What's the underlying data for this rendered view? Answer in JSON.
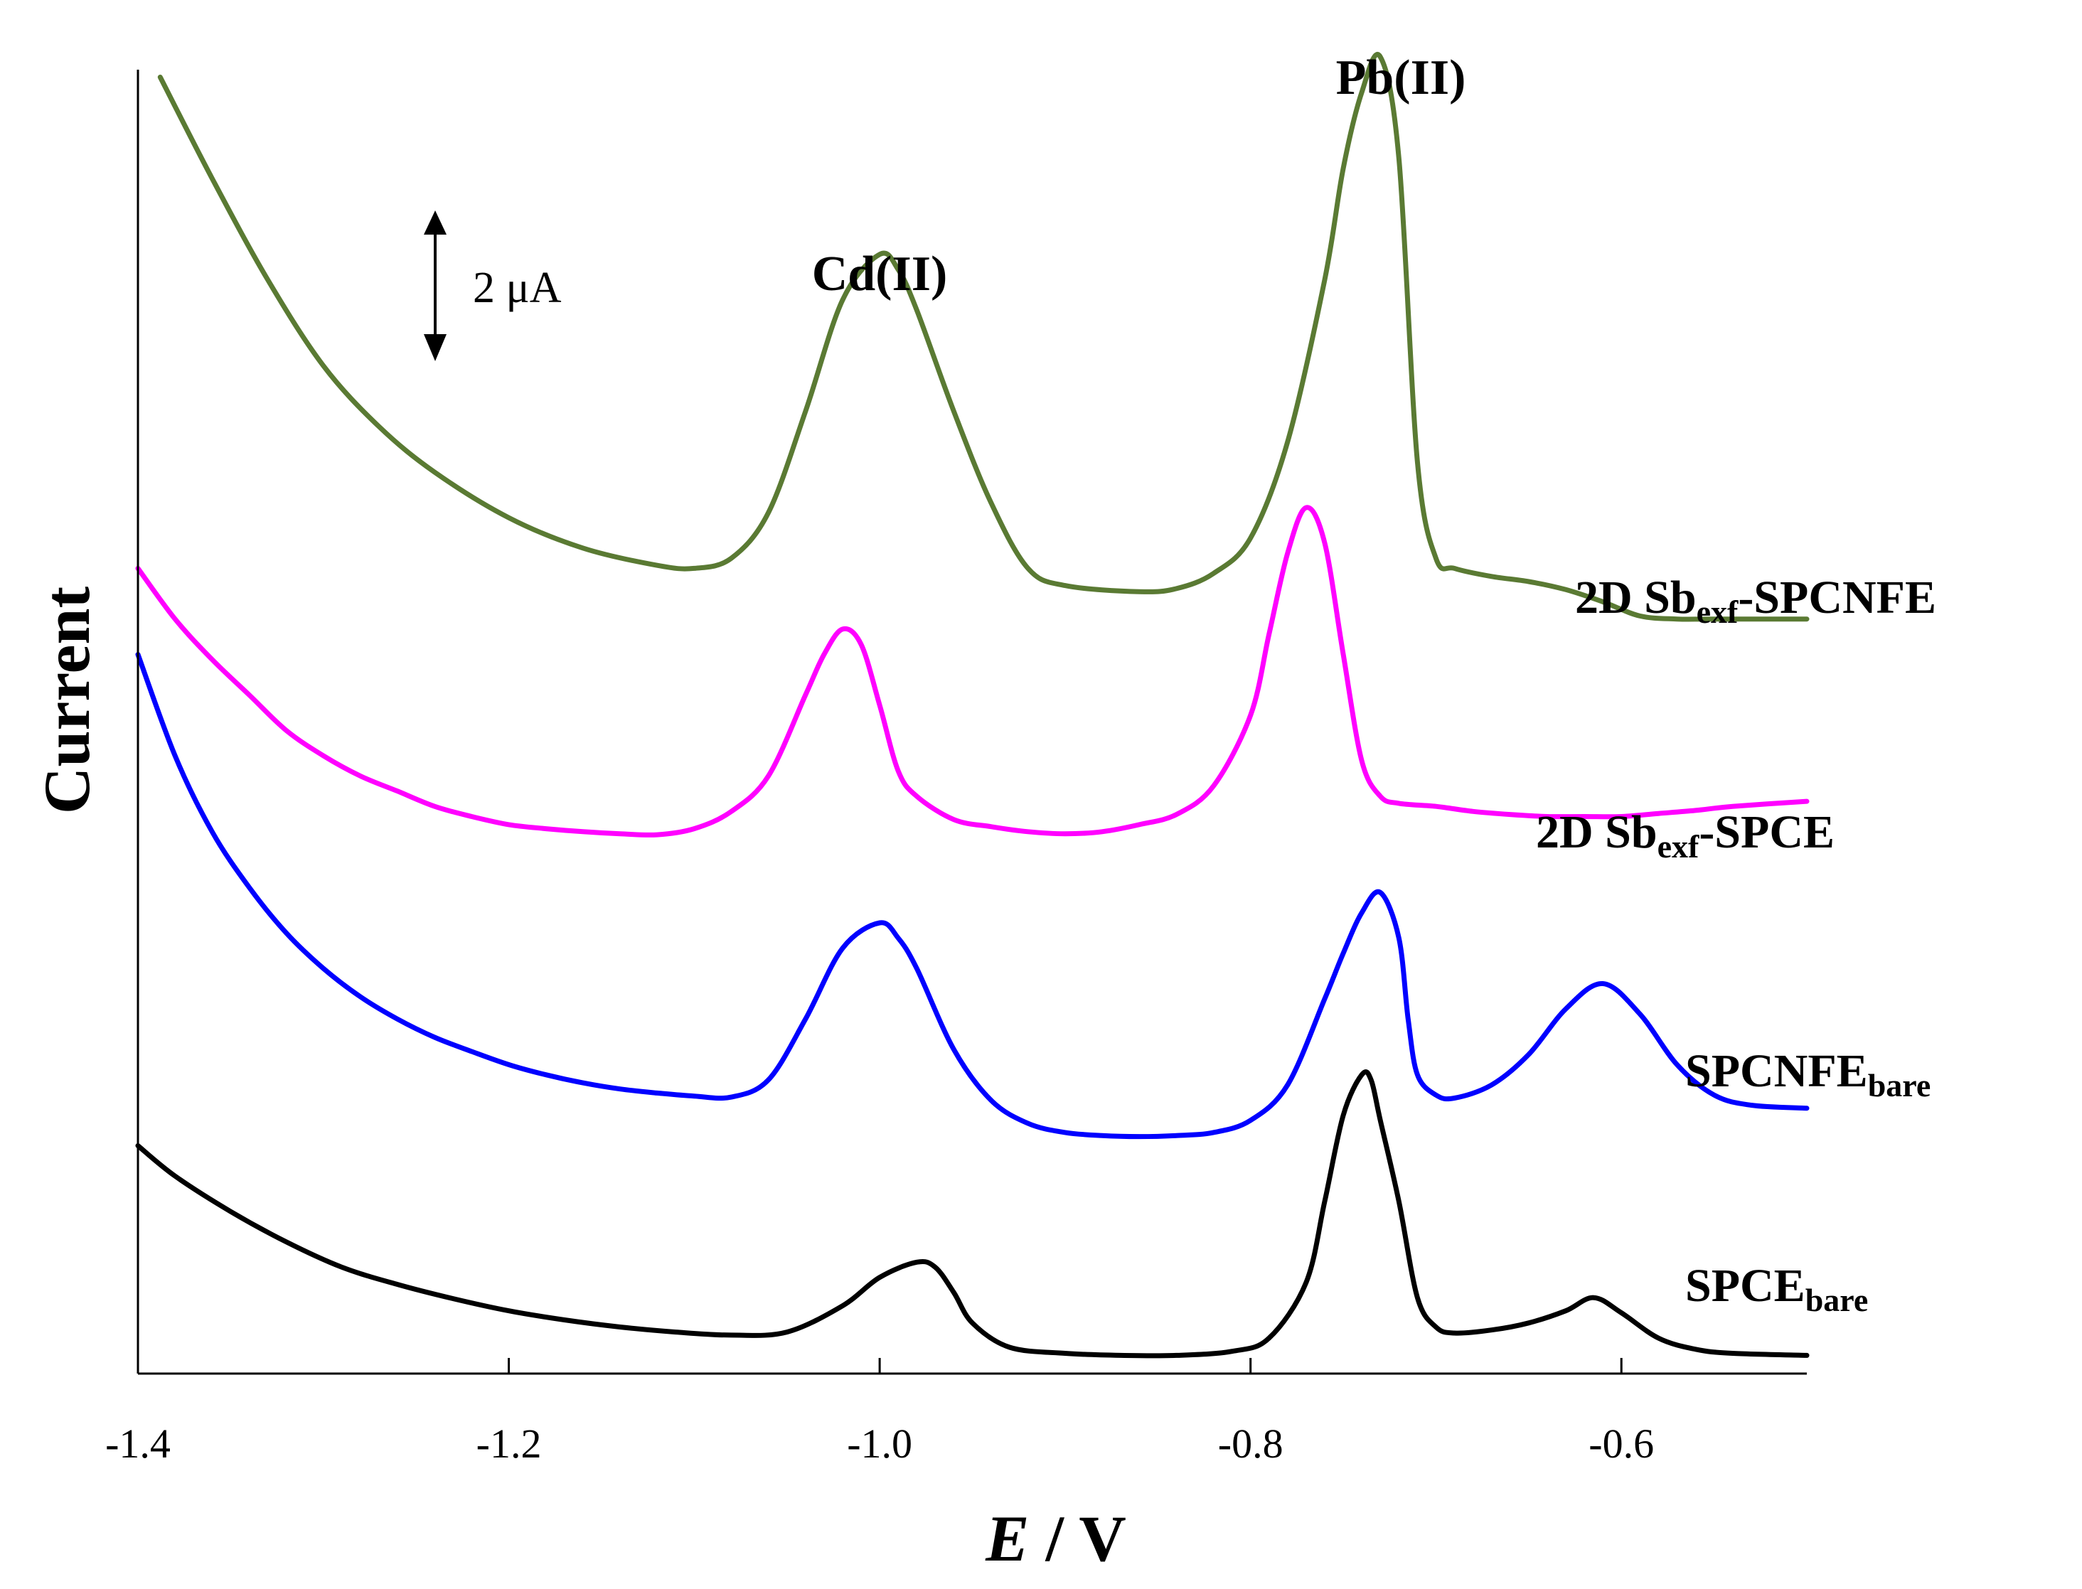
{
  "chart_data": {
    "type": "line",
    "title": "",
    "xlabel_italic": "E",
    "xlabel_rest": " / V",
    "ylabel": "Current",
    "xlim": [
      -1.4,
      -0.5
    ],
    "ylim": [
      0,
      13
    ],
    "x_tick_values": [
      -1.4,
      -1.2,
      -1.0,
      -0.8,
      -0.6
    ],
    "x_tick_labels": [
      "-1.4",
      "-1.2",
      "-1.0",
      "-0.8",
      "-0.6"
    ],
    "y_ticks_shown": false,
    "grid": false,
    "scale_bar": {
      "label": "2 μA",
      "value_uA": 2
    },
    "peak_annotations": [
      {
        "label": "Cd(II)",
        "x": -1.0
      },
      {
        "label": "Pb(II)",
        "x": -0.73
      }
    ],
    "series": [
      {
        "name_main": "2D Sb",
        "name_sub": "exf",
        "name_tail": "-SPCNFE",
        "color": "#5a7a33",
        "x": [
          -1.388,
          -1.36,
          -1.33,
          -1.3,
          -1.27,
          -1.24,
          -1.2,
          -1.16,
          -1.12,
          -1.1,
          -1.08,
          -1.06,
          -1.04,
          -1.02,
          -1.0,
          -0.99,
          -0.98,
          -0.96,
          -0.94,
          -0.92,
          -0.9,
          -0.86,
          -0.84,
          -0.82,
          -0.8,
          -0.78,
          -0.76,
          -0.75,
          -0.74,
          -0.73,
          -0.72,
          -0.71,
          -0.7,
          -0.69,
          -0.67,
          -0.65,
          -0.63,
          -0.61,
          -0.59,
          -0.57,
          -0.55,
          -0.5
        ],
        "y": [
          12.8,
          11.8,
          10.8,
          9.95,
          9.35,
          8.9,
          8.45,
          8.15,
          7.98,
          7.95,
          8.05,
          8.5,
          9.5,
          10.6,
          11.05,
          10.9,
          10.5,
          9.5,
          8.6,
          7.95,
          7.78,
          7.72,
          7.75,
          7.9,
          8.25,
          9.2,
          10.8,
          11.9,
          12.65,
          13.0,
          12.0,
          9.0,
          8.05,
          7.95,
          7.87,
          7.82,
          7.74,
          7.62,
          7.48,
          7.45,
          7.45,
          7.45
        ]
      },
      {
        "name_main": "2D Sb",
        "name_sub": "exf",
        "name_tail": "-SPCE",
        "color": "#ff00ff",
        "x": [
          -1.4,
          -1.38,
          -1.36,
          -1.34,
          -1.32,
          -1.3,
          -1.28,
          -1.26,
          -1.24,
          -1.22,
          -1.2,
          -1.18,
          -1.16,
          -1.14,
          -1.12,
          -1.1,
          -1.08,
          -1.06,
          -1.04,
          -1.03,
          -1.02,
          -1.01,
          -1.0,
          -0.99,
          -0.98,
          -0.96,
          -0.94,
          -0.92,
          -0.9,
          -0.88,
          -0.86,
          -0.84,
          -0.82,
          -0.8,
          -0.79,
          -0.78,
          -0.77,
          -0.76,
          -0.75,
          -0.74,
          -0.73,
          -0.72,
          -0.7,
          -0.68,
          -0.66,
          -0.64,
          -0.62,
          -0.6,
          -0.58,
          -0.56,
          -0.54,
          -0.5
        ],
        "y": [
          7.95,
          7.45,
          7.05,
          6.7,
          6.35,
          6.1,
          5.9,
          5.75,
          5.6,
          5.5,
          5.42,
          5.38,
          5.35,
          5.33,
          5.32,
          5.38,
          5.55,
          5.9,
          6.7,
          7.1,
          7.35,
          7.2,
          6.6,
          5.95,
          5.7,
          5.47,
          5.4,
          5.35,
          5.33,
          5.35,
          5.42,
          5.52,
          5.8,
          6.5,
          7.3,
          8.1,
          8.55,
          8.2,
          7.1,
          6.05,
          5.7,
          5.63,
          5.6,
          5.55,
          5.52,
          5.5,
          5.5,
          5.5,
          5.53,
          5.56,
          5.6,
          5.65
        ]
      },
      {
        "name_main": "SPCNFE",
        "name_sub": "bare",
        "name_tail": "",
        "color": "#0000ff",
        "x": [
          -1.4,
          -1.38,
          -1.36,
          -1.34,
          -1.32,
          -1.3,
          -1.28,
          -1.26,
          -1.24,
          -1.22,
          -1.2,
          -1.18,
          -1.16,
          -1.14,
          -1.12,
          -1.1,
          -1.08,
          -1.06,
          -1.04,
          -1.02,
          -1.0,
          -0.99,
          -0.98,
          -0.96,
          -0.94,
          -0.92,
          -0.9,
          -0.88,
          -0.86,
          -0.84,
          -0.82,
          -0.8,
          -0.78,
          -0.76,
          -0.75,
          -0.74,
          -0.73,
          -0.72,
          -0.715,
          -0.71,
          -0.7,
          -0.69,
          -0.67,
          -0.65,
          -0.63,
          -0.61,
          -0.59,
          -0.57,
          -0.55,
          -0.53,
          -0.5
        ],
        "y": [
          7.1,
          6.1,
          5.35,
          4.8,
          4.35,
          4.0,
          3.72,
          3.5,
          3.32,
          3.18,
          3.05,
          2.95,
          2.87,
          2.81,
          2.77,
          2.74,
          2.73,
          2.9,
          3.5,
          4.2,
          4.45,
          4.3,
          4.0,
          3.2,
          2.7,
          2.47,
          2.38,
          2.35,
          2.34,
          2.35,
          2.38,
          2.5,
          2.85,
          3.7,
          4.15,
          4.55,
          4.75,
          4.3,
          3.5,
          2.95,
          2.75,
          2.72,
          2.85,
          3.15,
          3.6,
          3.85,
          3.55,
          3.05,
          2.75,
          2.65,
          2.62
        ]
      },
      {
        "name_main": "SPCE",
        "name_sub": "bare",
        "name_tail": "",
        "color": "#000000",
        "x": [
          -1.4,
          -1.38,
          -1.35,
          -1.32,
          -1.29,
          -1.26,
          -1.23,
          -1.2,
          -1.17,
          -1.14,
          -1.11,
          -1.08,
          -1.05,
          -1.02,
          -1.0,
          -0.98,
          -0.97,
          -0.96,
          -0.95,
          -0.93,
          -0.9,
          -0.87,
          -0.84,
          -0.81,
          -0.79,
          -0.77,
          -0.76,
          -0.75,
          -0.74,
          -0.735,
          -0.73,
          -0.72,
          -0.71,
          -0.7,
          -0.69,
          -0.67,
          -0.65,
          -0.63,
          -0.615,
          -0.6,
          -0.58,
          -0.56,
          -0.54,
          -0.5
        ],
        "y": [
          2.25,
          1.95,
          1.6,
          1.3,
          1.05,
          0.88,
          0.74,
          0.62,
          0.53,
          0.46,
          0.41,
          0.38,
          0.41,
          0.67,
          0.95,
          1.1,
          1.05,
          0.8,
          0.5,
          0.26,
          0.2,
          0.18,
          0.18,
          0.22,
          0.35,
          0.9,
          1.7,
          2.55,
          2.95,
          2.9,
          2.5,
          1.7,
          0.75,
          0.46,
          0.4,
          0.43,
          0.5,
          0.62,
          0.75,
          0.6,
          0.35,
          0.24,
          0.2,
          0.18
        ]
      }
    ]
  }
}
